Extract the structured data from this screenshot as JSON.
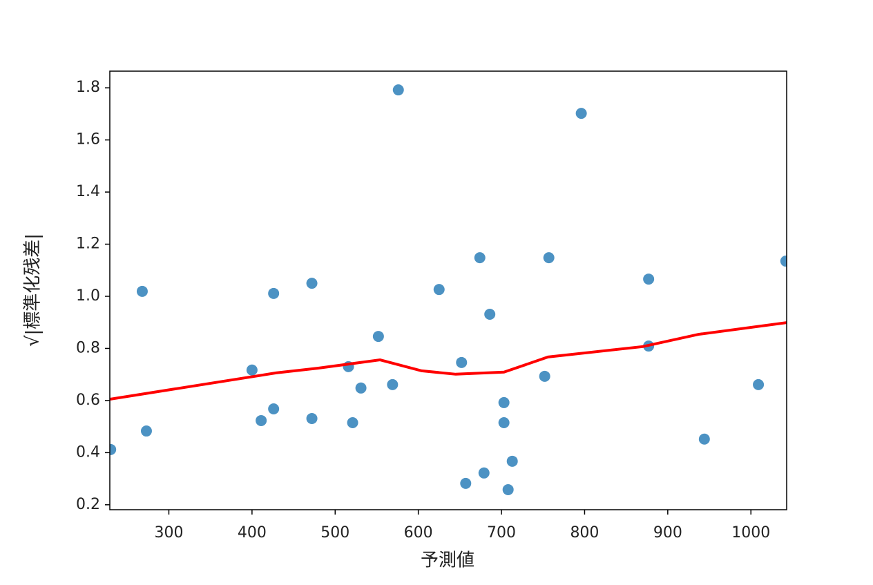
{
  "chart_data": {
    "type": "scatter",
    "xlabel": "予測値",
    "ylabel": "√|標準化残差|",
    "xlim": [
      229,
      1043
    ],
    "ylim": [
      0.181,
      1.864
    ],
    "xticks": [
      300,
      400,
      500,
      600,
      700,
      800,
      900,
      1000
    ],
    "yticks": [
      0.2,
      0.4,
      0.6,
      0.8,
      {
        "value": 1.0,
        "label": "1.0"
      },
      1.2,
      1.4,
      1.6,
      1.8
    ],
    "series": [
      {
        "type": "scatter",
        "color": "#1f77b4",
        "x": [
          230,
          268,
          273,
          400,
          411,
          426,
          426,
          472,
          472,
          516,
          521,
          531,
          552,
          569,
          576,
          625,
          652,
          657,
          674,
          679,
          686,
          703,
          703,
          708,
          713,
          752,
          757,
          796,
          877,
          877,
          944,
          1009,
          1042
        ],
        "values": [
          0.412,
          1.019,
          0.483,
          0.717,
          0.523,
          1.011,
          0.568,
          1.05,
          0.531,
          0.73,
          0.515,
          0.648,
          0.846,
          0.661,
          1.792,
          1.026,
          0.746,
          0.282,
          1.148,
          0.322,
          0.931,
          0.592,
          0.515,
          0.258,
          0.367,
          0.693,
          1.148,
          1.702,
          1.066,
          0.809,
          0.452,
          0.661,
          1.135
        ]
      },
      {
        "type": "line",
        "color": "#ff0000",
        "x": [
          229,
          429,
          479,
          554,
          604,
          645,
          703,
          756,
          870,
          937,
          1043
        ],
        "values": [
          0.605,
          0.706,
          0.724,
          0.756,
          0.714,
          0.701,
          0.709,
          0.767,
          0.807,
          0.854,
          0.899
        ]
      }
    ]
  }
}
